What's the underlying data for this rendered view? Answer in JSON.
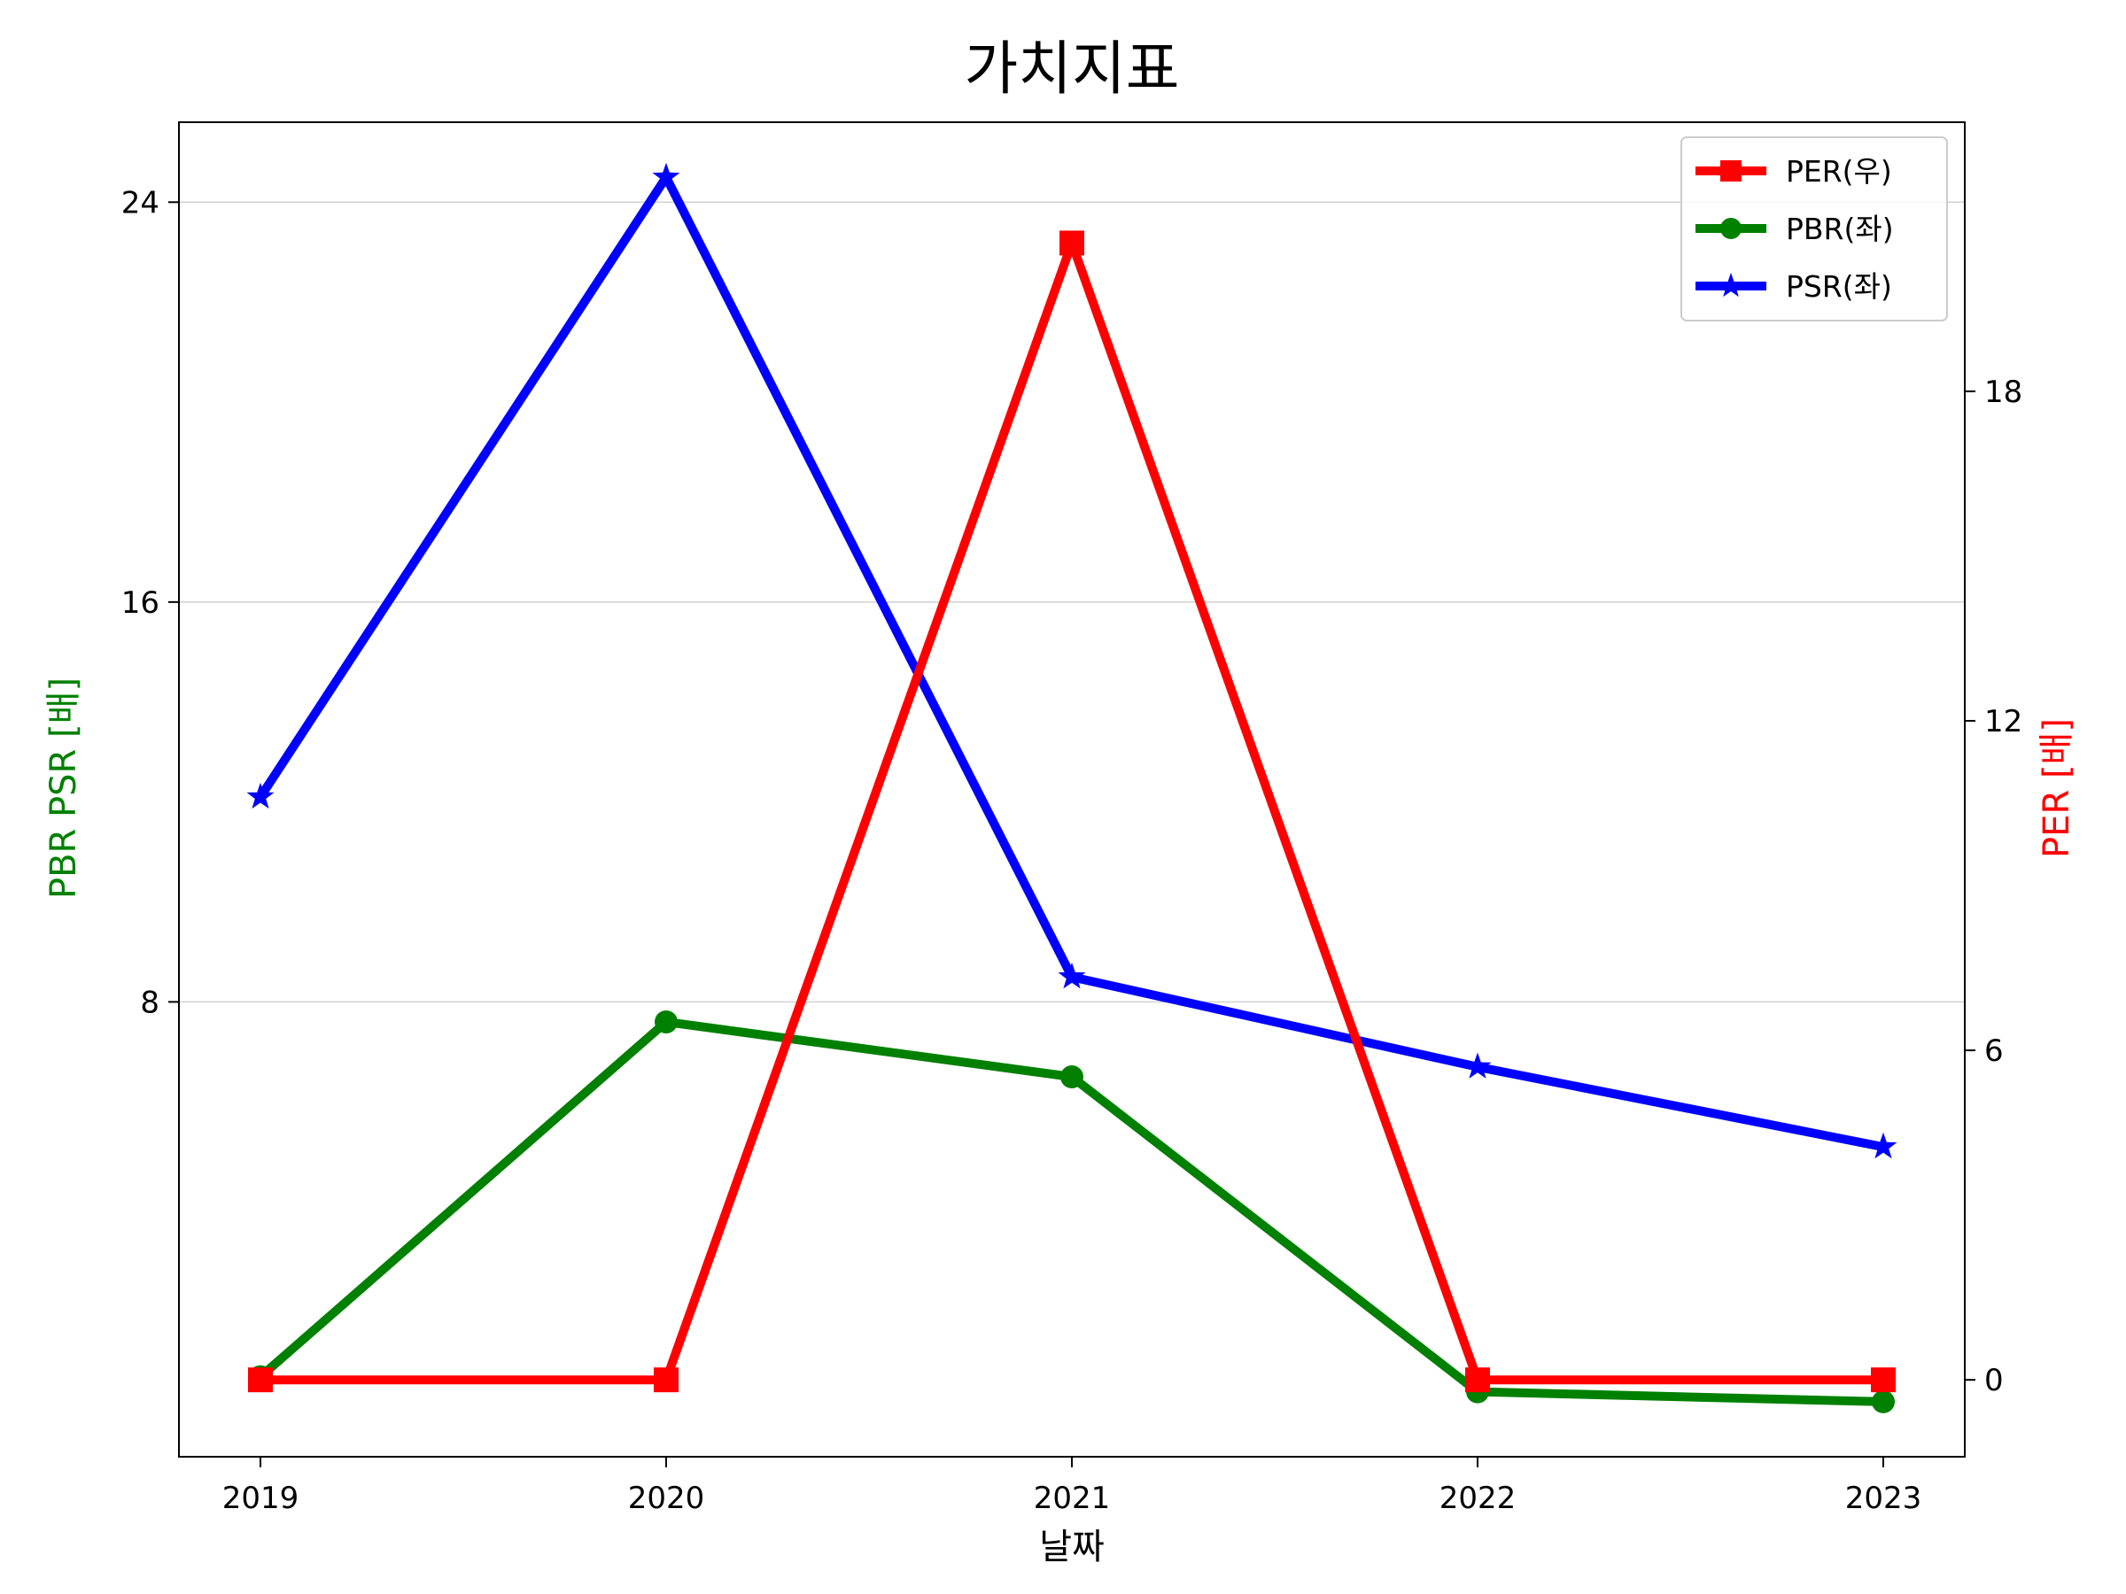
{
  "chart_data": {
    "type": "line",
    "title": "가치지표",
    "xlabel": "날짜",
    "ylabel_left": "PBR PSR [배]",
    "ylabel_right": "PER [배]",
    "categories": [
      "2019",
      "2020",
      "2021",
      "2022",
      "2023"
    ],
    "left_axis": {
      "ylim": [
        -1.1,
        25.6
      ],
      "ticks": [
        8,
        16,
        24
      ],
      "color": "#008000"
    },
    "right_axis": {
      "ylim": [
        -1.4,
        22.9
      ],
      "ticks": [
        0,
        6,
        12,
        18
      ],
      "color": "#ff0000"
    },
    "grid": "horizontal",
    "legend_position": "top-right",
    "series": [
      {
        "name": "PER(우)",
        "axis": "right",
        "color": "#ff0000",
        "marker": "square",
        "values": [
          0,
          0,
          20.7,
          0,
          0
        ]
      },
      {
        "name": "PBR(좌)",
        "axis": "left",
        "color": "#008000",
        "marker": "circle",
        "values": [
          0.5,
          7.6,
          6.5,
          0.2,
          0.0
        ]
      },
      {
        "name": "PSR(좌)",
        "axis": "left",
        "color": "#0000ff",
        "marker": "star",
        "values": [
          12.1,
          24.5,
          8.5,
          6.7,
          5.1
        ]
      }
    ]
  }
}
